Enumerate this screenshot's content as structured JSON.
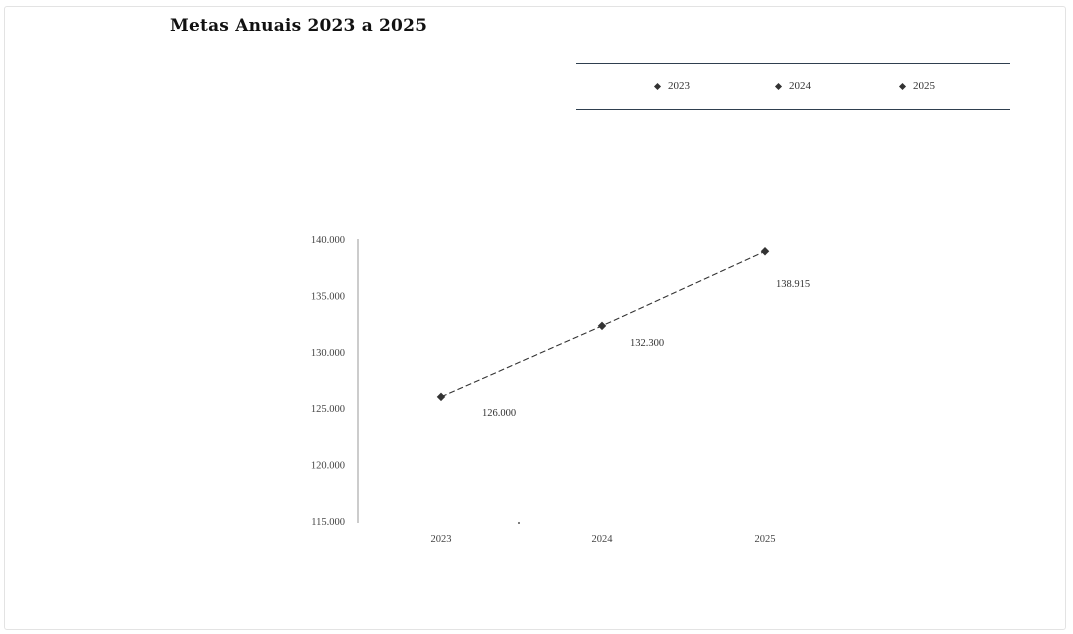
{
  "chart_data": {
    "type": "line",
    "title": "Metas Anuais 2023 a 2025",
    "categories": [
      "2023",
      "2024",
      "2025"
    ],
    "series": [
      {
        "name": "",
        "values": [
          126000,
          132300,
          138915
        ],
        "labels": [
          "126.000",
          "132.300",
          "138.915"
        ],
        "color": "#333333",
        "line_style": "dashed"
      }
    ],
    "legend": {
      "placement": "top-right",
      "entries": [
        "2023",
        "2024",
        "2025"
      ]
    },
    "yticks": [
      115000,
      120000,
      125000,
      130000,
      135000,
      140000
    ],
    "ytick_labels": [
      "115.000",
      "120.000",
      "125.000",
      "130.000",
      "135.000",
      "140.000"
    ],
    "ylim": [
      115000,
      140000
    ],
    "xlabel": "",
    "ylabel": "",
    "grid": false
  }
}
